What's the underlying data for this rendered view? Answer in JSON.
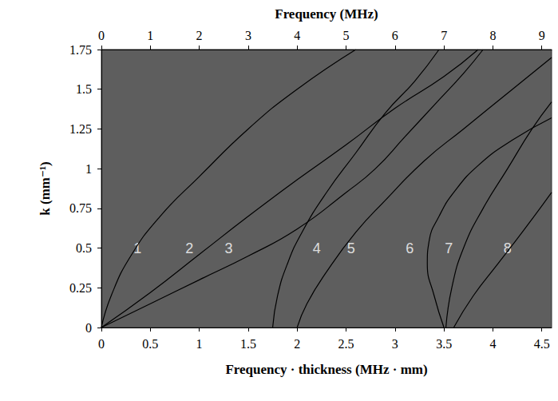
{
  "chart_data": {
    "type": "line",
    "xlabel": "Frequency · thickness (MHz · mm)",
    "x2label": "Frequency (MHz)",
    "ylabel": "k (mm⁻¹)",
    "xlim": [
      0,
      4.6
    ],
    "xticks": [
      0,
      0.5,
      1,
      1.5,
      2,
      2.5,
      3,
      3.5,
      4,
      4.5
    ],
    "x2lim": [
      0,
      9.2
    ],
    "x2ticks": [
      0,
      1,
      2,
      3,
      4,
      5,
      6,
      7,
      8,
      9
    ],
    "ylim": [
      0,
      1.75
    ],
    "yticks": [
      0,
      0.25,
      0.5,
      0.75,
      1,
      1.25,
      1.5,
      1.75
    ],
    "grid": false,
    "series": [
      {
        "color": "#000000",
        "x": [
          0,
          0.1,
          0.3,
          0.6,
          1.0,
          1.5,
          2.0,
          2.6
        ],
        "values": [
          0,
          0.2,
          0.45,
          0.7,
          0.95,
          1.25,
          1.5,
          1.75
        ]
      },
      {
        "color": "#000000",
        "x": [
          0,
          0.5,
          1.0,
          1.5,
          2.0,
          2.5,
          3.0,
          3.5,
          3.85
        ],
        "values": [
          0,
          0.22,
          0.46,
          0.7,
          0.93,
          1.15,
          1.38,
          1.58,
          1.75
        ]
      },
      {
        "color": "#000000",
        "x": [
          0,
          0.5,
          1.0,
          1.5,
          2.0,
          2.5,
          2.8,
          3.1,
          3.4,
          3.7,
          3.9
        ],
        "values": [
          0,
          0.15,
          0.3,
          0.45,
          0.62,
          0.85,
          1.0,
          1.2,
          1.4,
          1.6,
          1.75
        ]
      },
      {
        "color": "#000000",
        "x": [
          1.75,
          1.8,
          1.9,
          2.05,
          2.3,
          2.6,
          2.9,
          3.2,
          3.45
        ],
        "values": [
          0,
          0.2,
          0.4,
          0.6,
          0.85,
          1.1,
          1.35,
          1.55,
          1.75
        ]
      },
      {
        "color": "#000000",
        "x": [
          2.0,
          2.1,
          2.3,
          2.6,
          2.9,
          3.3,
          3.7,
          4.2,
          4.6
        ],
        "values": [
          0,
          0.15,
          0.35,
          0.6,
          0.8,
          1.05,
          1.25,
          1.5,
          1.7
        ]
      },
      {
        "color": "#000000",
        "x": [
          3.5,
          3.4,
          3.33,
          3.35,
          3.45,
          3.6,
          3.85,
          4.2,
          4.6
        ],
        "values": [
          0,
          0.2,
          0.4,
          0.55,
          0.7,
          0.85,
          1.02,
          1.18,
          1.32
        ]
      },
      {
        "color": "#000000",
        "x": [
          3.52,
          3.58,
          3.7,
          3.9,
          4.15,
          4.4,
          4.6
        ],
        "values": [
          0,
          0.25,
          0.5,
          0.75,
          1.0,
          1.25,
          1.42
        ]
      },
      {
        "color": "#000000",
        "x": [
          3.6,
          3.8,
          4.05,
          4.3,
          4.6
        ],
        "values": [
          0,
          0.2,
          0.4,
          0.6,
          0.85
        ]
      }
    ],
    "annotations": [
      {
        "text": "1",
        "x": 0.37,
        "y": 0.5
      },
      {
        "text": "2",
        "x": 0.9,
        "y": 0.5
      },
      {
        "text": "3",
        "x": 1.3,
        "y": 0.5
      },
      {
        "text": "4",
        "x": 2.2,
        "y": 0.5
      },
      {
        "text": "5",
        "x": 2.55,
        "y": 0.5
      },
      {
        "text": "6",
        "x": 3.15,
        "y": 0.5
      },
      {
        "text": "7",
        "x": 3.55,
        "y": 0.5
      },
      {
        "text": "8",
        "x": 4.15,
        "y": 0.5
      }
    ]
  }
}
